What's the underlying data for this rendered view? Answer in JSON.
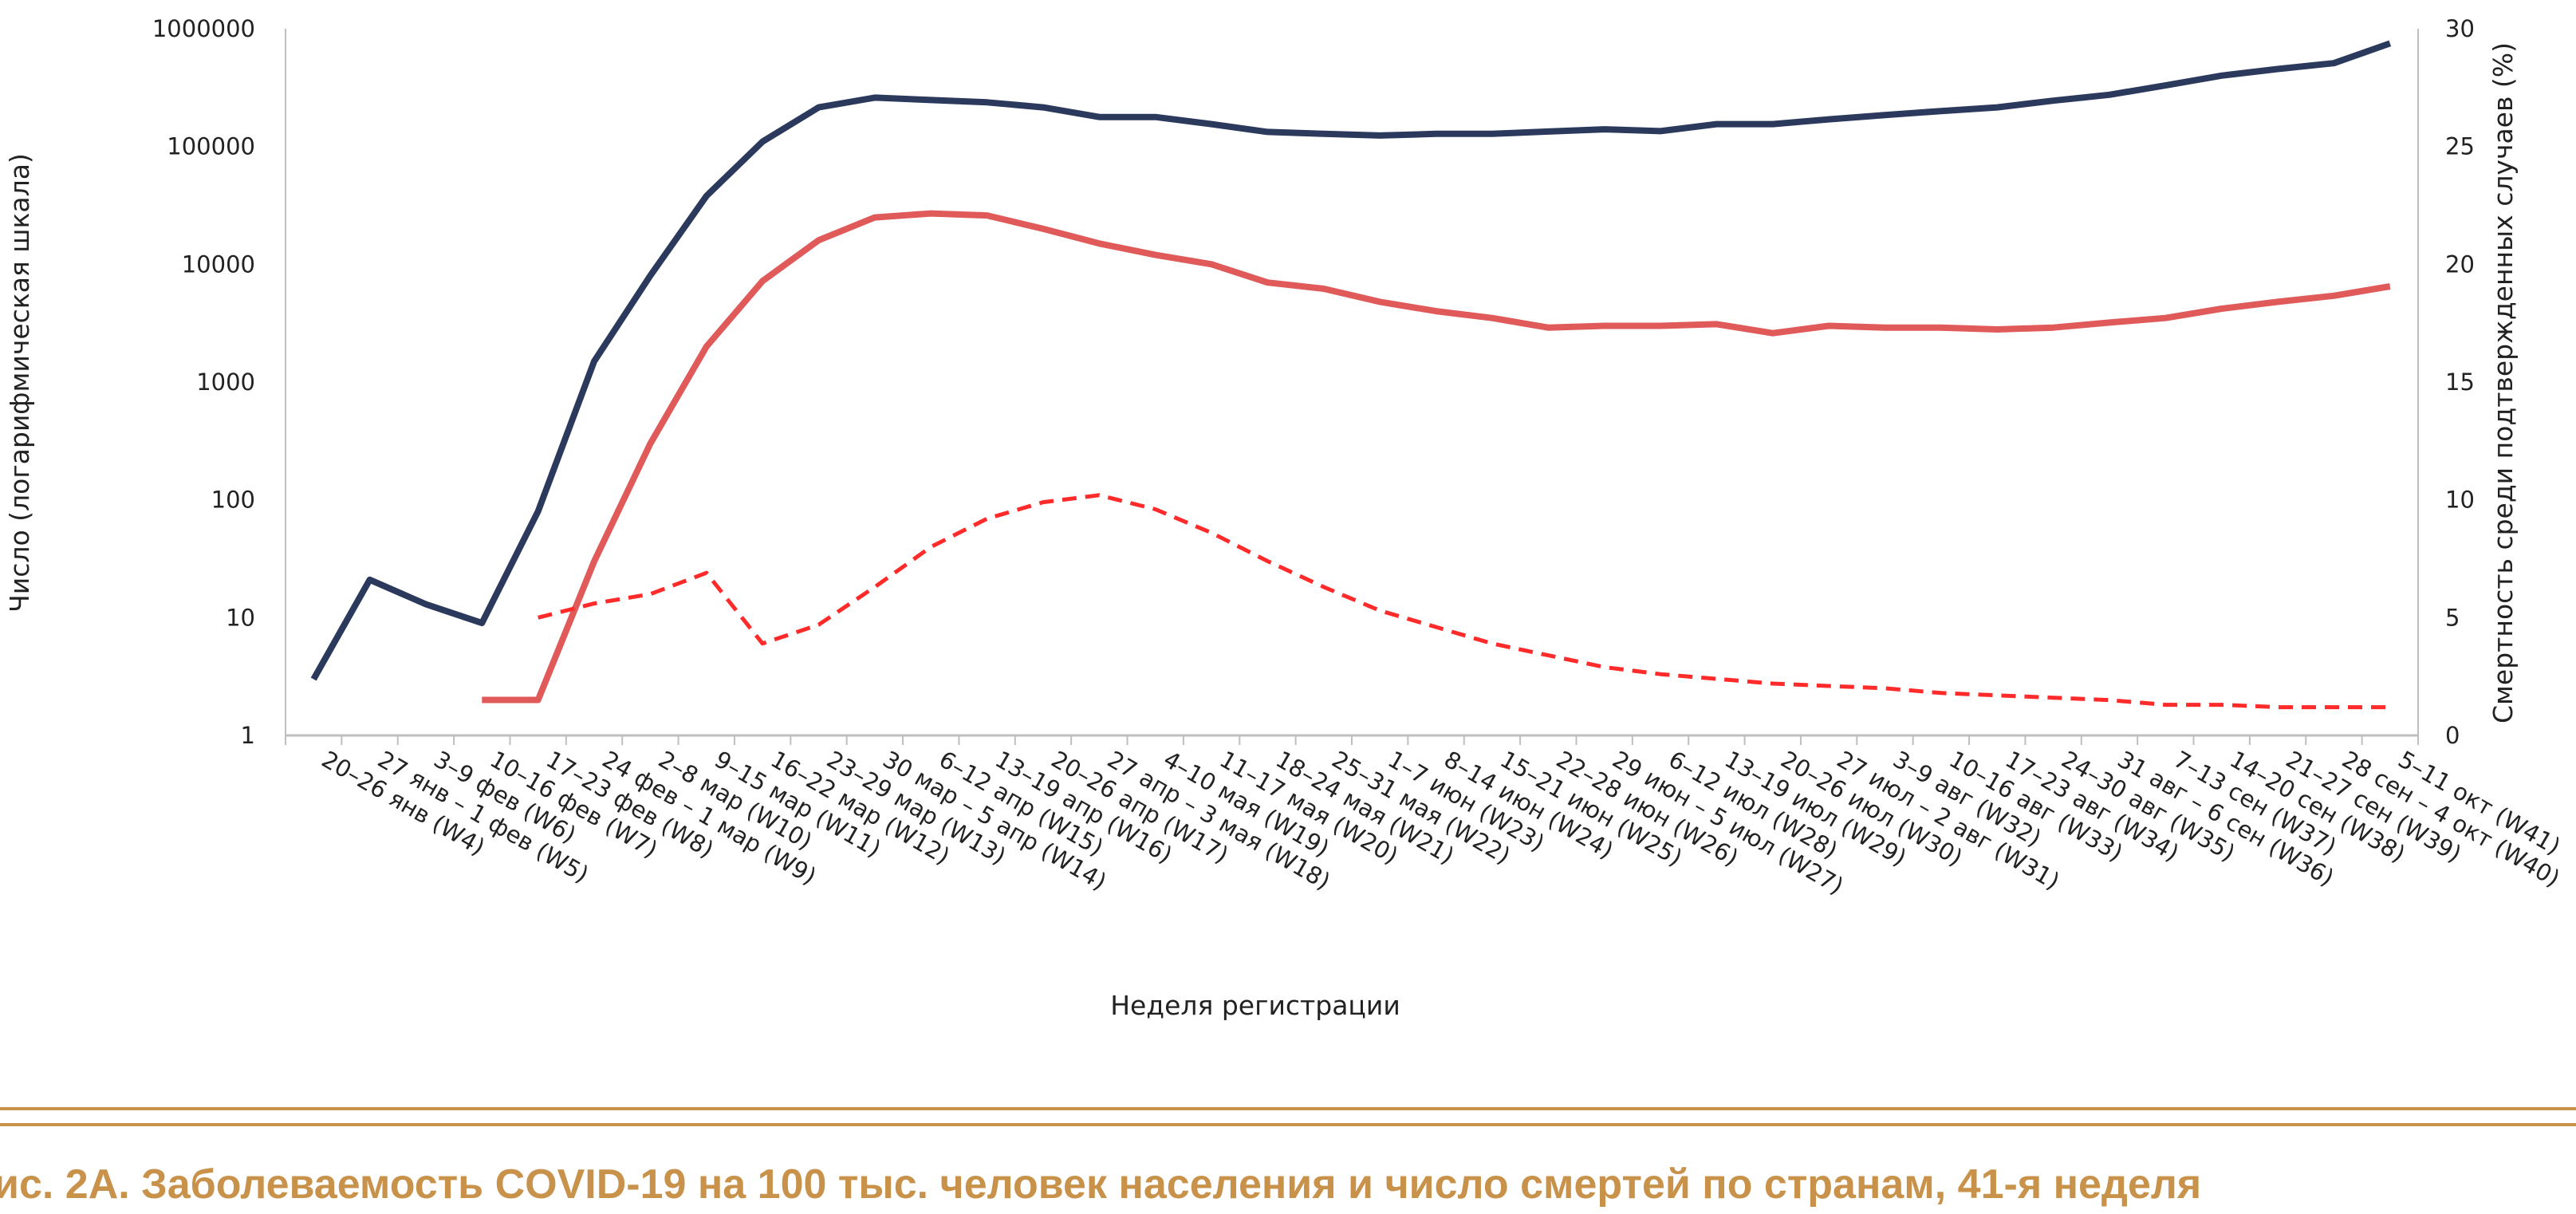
{
  "caption": "ис. 2А. Заболеваемость COVID-19 на 100 тыс. человек населения и число смертей по странам, 41-я неделя",
  "chart_data": {
    "type": "line",
    "xlabel": "Неделя регистрации",
    "ylabel_left": "Число (логарифмическая шкала)",
    "ylabel_right": "Смертность среди подтвержденных случаев (%)",
    "y_left_scale": "log",
    "y_left_range": [
      1,
      1000000
    ],
    "y_left_ticks": [
      "1",
      "10",
      "100",
      "1000",
      "10000",
      "100000",
      "1000000"
    ],
    "y_right_range": [
      0,
      30
    ],
    "y_right_ticks": [
      "0",
      "5",
      "10",
      "15",
      "20",
      "25",
      "30"
    ],
    "grid": false,
    "legend": "none",
    "categories": [
      "20–26 янв (W4)",
      "27 янв – 1 фев (W5)",
      "3–9 фев (W6)",
      "10–16 фев (W7)",
      "17–23 фев (W8)",
      "24 фев – 1 мар (W9)",
      "2–8 мар (W10)",
      "9–15 мар (W11)",
      "16–22 мар (W12)",
      "23–29 мар (W13)",
      "30 мар – 5 апр (W14)",
      "6–12 апр (W15)",
      "13–19 апр (W16)",
      "20–26 апр (W17)",
      "27 апр – 3 мая (W18)",
      "4–10 мая (W19)",
      "11–17 мая (W20)",
      "18–24 мая (W21)",
      "25–31 мая (W22)",
      "1–7 июн (W23)",
      "8–14 июн (W24)",
      "15–21 июн (W25)",
      "22–28 июн (W26)",
      "29 июн – 5 июл (W27)",
      "6–12 июл (W28)",
      "13–19 июл (W29)",
      "20–26 июл (W30)",
      "27 июл – 2 авг (W31)",
      "3–9 авг (W32)",
      "10–16 авг (W33)",
      "17–23 авг (W34)",
      "24–30 авг (W35)",
      "31 авг – 6 сен (W36)",
      "7–13 сен (W37)",
      "14–20 сен (W38)",
      "21–27 сен (W39)",
      "28 сен – 4 окт (W40)",
      "5–11 окт (W41)"
    ],
    "series": [
      {
        "axis": "left",
        "style": "solid",
        "color": "#2b3a5c",
        "values": [
          3,
          21,
          13,
          9,
          80,
          1500,
          8000,
          38000,
          110000,
          215000,
          260000,
          248000,
          237000,
          215000,
          178000,
          178000,
          155000,
          133000,
          128000,
          124000,
          128000,
          128000,
          134000,
          140000,
          135000,
          155000,
          155000,
          170000,
          185000,
          200000,
          215000,
          245000,
          275000,
          330000,
          400000,
          455000,
          510000,
          750000
        ]
      },
      {
        "axis": "left",
        "style": "solid",
        "color": "#e05a5a",
        "values": [
          null,
          null,
          null,
          2,
          2,
          30,
          300,
          2000,
          7200,
          16000,
          25000,
          27000,
          26000,
          20000,
          15000,
          12000,
          10000,
          7000,
          6200,
          4800,
          4000,
          3500,
          2900,
          3000,
          3000,
          3100,
          2600,
          3000,
          2900,
          2900,
          2800,
          2900,
          3200,
          3500,
          4200,
          4800,
          5400,
          6500
        ]
      },
      {
        "axis": "right",
        "style": "dashed",
        "color": "#ff2a2a",
        "values": [
          null,
          null,
          null,
          null,
          5.0,
          5.6,
          6.0,
          6.9,
          3.9,
          4.7,
          6.3,
          8.0,
          9.2,
          9.9,
          10.2,
          9.6,
          8.6,
          7.4,
          6.3,
          5.3,
          4.6,
          3.9,
          3.4,
          2.9,
          2.6,
          2.4,
          2.2,
          2.1,
          2.0,
          1.8,
          1.7,
          1.6,
          1.5,
          1.3,
          1.3,
          1.2,
          1.2,
          1.2
        ]
      }
    ]
  }
}
